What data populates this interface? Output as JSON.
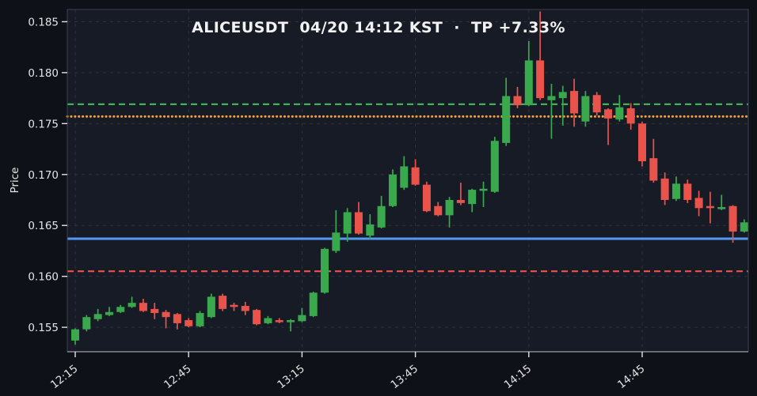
{
  "colors": {
    "figure_background": "#0e1117",
    "plot_background": "#171b25",
    "grid": "#2c3240",
    "spine": "#3c4250",
    "bottom_spine": "#9aa0a6",
    "tick_text": "#e4e4e4",
    "title_text": "#f2f2f2",
    "candle_up": "#3aa94e",
    "candle_down": "#e8544b"
  },
  "chart_data": {
    "type": "candlestick",
    "title": "ALICEUSDT  04/20 14:12 KST  ·  TP +7.33%",
    "symbol": "ALICEUSDT",
    "signal_time": "04/20 14:12 KST",
    "take_profit_label": "TP +7.33%",
    "ylabel": "Price",
    "interval_minutes": 3,
    "grid": true,
    "ylim": [
      0.1526,
      0.1862
    ],
    "y_ticks": [
      "0.155",
      "0.160",
      "0.165",
      "0.170",
      "0.175",
      "0.180",
      "0.185"
    ],
    "x_ticks": [
      {
        "label": "12:15",
        "i": 0
      },
      {
        "label": "12:45",
        "i": 10
      },
      {
        "label": "13:15",
        "i": 20
      },
      {
        "label": "13:45",
        "i": 30
      },
      {
        "label": "14:15",
        "i": 40
      },
      {
        "label": "14:45",
        "i": 50
      }
    ],
    "hlines": [
      {
        "name": "green-dashed-level",
        "price": 0.1769,
        "color": "#3db258",
        "style": "dashed",
        "width": 2.2
      },
      {
        "name": "orange-dotted-level",
        "price": 0.1757,
        "color": "#f0a339",
        "style": "dotted",
        "width": 3
      },
      {
        "name": "blue-solid-level",
        "price": 0.1637,
        "color": "#5598f2",
        "style": "solid",
        "width": 3
      },
      {
        "name": "red-dashed-level",
        "price": 0.1605,
        "color": "#ea534b",
        "style": "dashed",
        "width": 2.2
      }
    ],
    "candle_columns": [
      "time",
      "open",
      "high",
      "low",
      "close"
    ],
    "candles": [
      [
        "12:15",
        0.1537,
        0.1549,
        0.1533,
        0.1548
      ],
      [
        "12:18",
        0.1548,
        0.1562,
        0.1546,
        0.156
      ],
      [
        "12:21",
        0.1558,
        0.1568,
        0.1556,
        0.1563
      ],
      [
        "12:24",
        0.1562,
        0.157,
        0.1561,
        0.1565
      ],
      [
        "12:27",
        0.1565,
        0.1572,
        0.1564,
        0.157
      ],
      [
        "12:30",
        0.157,
        0.158,
        0.1569,
        0.1574
      ],
      [
        "12:33",
        0.1574,
        0.1578,
        0.1565,
        0.1566
      ],
      [
        "12:36",
        0.1568,
        0.1574,
        0.1558,
        0.1564
      ],
      [
        "12:39",
        0.1565,
        0.1567,
        0.1549,
        0.156
      ],
      [
        "12:42",
        0.1563,
        0.1564,
        0.1548,
        0.1554
      ],
      [
        "12:45",
        0.1557,
        0.1559,
        0.155,
        0.1551
      ],
      [
        "12:48",
        0.1551,
        0.1566,
        0.155,
        0.1564
      ],
      [
        "12:51",
        0.156,
        0.1583,
        0.1559,
        0.158
      ],
      [
        "12:54",
        0.1581,
        0.1583,
        0.1566,
        0.1568
      ],
      [
        "12:57",
        0.1572,
        0.1574,
        0.1566,
        0.157
      ],
      [
        "13:00",
        0.1571,
        0.1575,
        0.1562,
        0.1566
      ],
      [
        "13:03",
        0.1567,
        0.1568,
        0.1552,
        0.1553
      ],
      [
        "13:06",
        0.1554,
        0.1561,
        0.1553,
        0.1559
      ],
      [
        "13:09",
        0.1557,
        0.1559,
        0.1554,
        0.1555
      ],
      [
        "13:12",
        0.1555,
        0.1558,
        0.1546,
        0.1557
      ],
      [
        "13:15",
        0.1556,
        0.1569,
        0.1555,
        0.1562
      ],
      [
        "13:18",
        0.1561,
        0.1585,
        0.156,
        0.1584
      ],
      [
        "13:21",
        0.1584,
        0.1628,
        0.1583,
        0.1627
      ],
      [
        "13:24",
        0.1625,
        0.1665,
        0.1623,
        0.1643
      ],
      [
        "13:27",
        0.1642,
        0.1667,
        0.1634,
        0.1663
      ],
      [
        "13:30",
        0.1663,
        0.1673,
        0.1641,
        0.1642
      ],
      [
        "13:33",
        0.164,
        0.1661,
        0.1636,
        0.1651
      ],
      [
        "13:36",
        0.1648,
        0.1679,
        0.1647,
        0.1669
      ],
      [
        "13:39",
        0.1669,
        0.1705,
        0.1668,
        0.17
      ],
      [
        "13:42",
        0.1687,
        0.1718,
        0.1685,
        0.1708
      ],
      [
        "13:45",
        0.1707,
        0.1715,
        0.1689,
        0.169
      ],
      [
        "13:48",
        0.169,
        0.1693,
        0.1663,
        0.1664
      ],
      [
        "13:51",
        0.1669,
        0.1673,
        0.1659,
        0.166
      ],
      [
        "13:54",
        0.166,
        0.1678,
        0.1648,
        0.1675
      ],
      [
        "13:57",
        0.1675,
        0.1692,
        0.167,
        0.1672
      ],
      [
        "14:00",
        0.1671,
        0.1686,
        0.1663,
        0.1685
      ],
      [
        "14:03",
        0.1684,
        0.1693,
        0.1668,
        0.1686
      ],
      [
        "14:06",
        0.1683,
        0.1737,
        0.1682,
        0.1733
      ],
      [
        "14:09",
        0.1731,
        0.1795,
        0.1728,
        0.1777
      ],
      [
        "14:12",
        0.1777,
        0.1786,
        0.1765,
        0.1768
      ],
      [
        "14:15",
        0.1768,
        0.1831,
        0.1767,
        0.1812
      ],
      [
        "14:18",
        0.1812,
        0.186,
        0.1773,
        0.1775
      ],
      [
        "14:21",
        0.1773,
        0.1789,
        0.1735,
        0.1777
      ],
      [
        "14:24",
        0.1775,
        0.1787,
        0.1748,
        0.1781
      ],
      [
        "14:27",
        0.1782,
        0.1794,
        0.1747,
        0.176
      ],
      [
        "14:30",
        0.1752,
        0.1782,
        0.1747,
        0.1777
      ],
      [
        "14:33",
        0.1778,
        0.1781,
        0.1758,
        0.1761
      ],
      [
        "14:36",
        0.1764,
        0.1765,
        0.1729,
        0.1755
      ],
      [
        "14:39",
        0.1754,
        0.1778,
        0.1752,
        0.1766
      ],
      [
        "14:42",
        0.1765,
        0.177,
        0.1744,
        0.175
      ],
      [
        "14:45",
        0.175,
        0.1752,
        0.1708,
        0.1713
      ],
      [
        "14:48",
        0.1716,
        0.1735,
        0.1692,
        0.1694
      ],
      [
        "14:51",
        0.1696,
        0.1702,
        0.167,
        0.1675
      ],
      [
        "14:54",
        0.1676,
        0.1698,
        0.1674,
        0.1691
      ],
      [
        "14:57",
        0.1691,
        0.1695,
        0.1672,
        0.1675
      ],
      [
        "15:00",
        0.1677,
        0.1684,
        0.1659,
        0.1667
      ],
      [
        "15:03",
        0.1669,
        0.1683,
        0.1652,
        0.1667
      ],
      [
        "15:06",
        0.1666,
        0.168,
        0.1665,
        0.1668
      ],
      [
        "15:09",
        0.1669,
        0.167,
        0.1633,
        0.1644
      ],
      [
        "15:12",
        0.1644,
        0.1656,
        0.1643,
        0.1653
      ]
    ]
  }
}
